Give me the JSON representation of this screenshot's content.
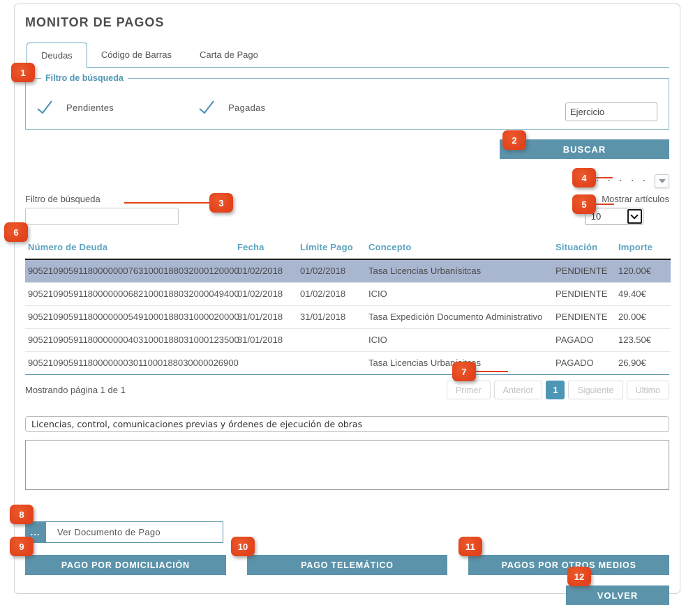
{
  "title": "MONITOR DE PAGOS",
  "tabs": [
    {
      "label": "Deudas",
      "active": true
    },
    {
      "label": "Código de Barras",
      "active": false
    },
    {
      "label": "Carta de Pago",
      "active": false
    }
  ],
  "filter_fieldset": {
    "legend": "Filtro de búsqueda",
    "checkboxes": [
      {
        "label": "Pendientes",
        "checked": true
      },
      {
        "label": "Pagadas",
        "checked": true
      }
    ],
    "ejercicio_placeholder": "Ejercicio"
  },
  "buscar_label": "BUSCAR",
  "list_controls": {
    "filter_label": "Filtro de búsqueda",
    "filter_value": "",
    "dots": "· · · · · ·",
    "show_label": "Mostrar artículos",
    "page_size": "10"
  },
  "table": {
    "headers": [
      "Número de Deuda",
      "Fecha",
      "Límite Pago",
      "Concepto",
      "Situación",
      "Importe"
    ],
    "rows": [
      {
        "numero": "905210905911800000007631000188032000120000",
        "fecha": "01/02/2018",
        "limite": "01/02/2018",
        "concepto": "Tasa Licencias Urbanísitcas",
        "situacion": "PENDIENTE",
        "importe": "120.00€",
        "selected": true
      },
      {
        "numero": "905210905911800000006821000188032000049400",
        "fecha": "01/02/2018",
        "limite": "01/02/2018",
        "concepto": "ICIO",
        "situacion": "PENDIENTE",
        "importe": "49.40€",
        "selected": false
      },
      {
        "numero": "905210905911800000005491000188031000020000",
        "fecha": "31/01/2018",
        "limite": "31/01/2018",
        "concepto": "Tasa Expedición Documento Administrativo",
        "situacion": "PENDIENTE",
        "importe": "20.00€",
        "selected": false
      },
      {
        "numero": "905210905911800000004031000188031000123500",
        "fecha": "31/01/2018",
        "limite": "",
        "concepto": "ICIO",
        "situacion": "PAGADO",
        "importe": "123.50€",
        "selected": false
      },
      {
        "numero": "905210905911800000003011000188030000026900",
        "fecha": "",
        "limite": "",
        "concepto": "Tasa Licencias Urbanísitcas",
        "situacion": "PAGADO",
        "importe": "26.90€",
        "selected": false
      }
    ]
  },
  "pagination": {
    "status": "Mostrando página 1 de 1",
    "buttons": [
      "Primer",
      "Anterior",
      "1",
      "Siguiente",
      "Último"
    ],
    "active": "1"
  },
  "description_value": "Licencias, control, comunicaciones previas y órdenes de ejecución de obras",
  "notes_value": "",
  "document": {
    "more_label": "...",
    "view_label": "Ver Documento de Pago"
  },
  "actions": [
    "PAGO POR DOMICILIACIÓN",
    "PAGO TELEMÁTICO",
    "PAGOS POR OTROS MEDIOS"
  ],
  "volver_label": "VOLVER",
  "annotations": [
    "1",
    "2",
    "3",
    "4",
    "5",
    "6",
    "7",
    "8",
    "9",
    "10",
    "11",
    "12"
  ],
  "colors": {
    "accent_blue": "#5b93aa",
    "active_page_blue": "#4e96b5",
    "header_text_blue": "#5ba3c0",
    "fieldset_border_blue": "#8ab4c8",
    "selected_row": "#a9b6cf",
    "badge_red": "#e2421c",
    "text_dark": "#4d4d4d"
  }
}
